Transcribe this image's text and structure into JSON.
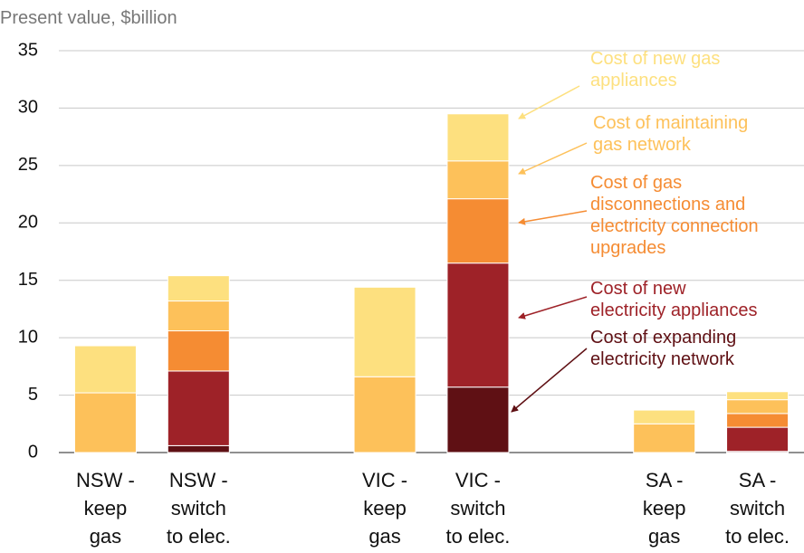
{
  "chart_data": {
    "type": "stacked_bar",
    "subtitle": "Present value, $billion",
    "categories": [
      "NSW -\nkeep\ngas",
      "NSW -\nswitch\nto elec.",
      null,
      "VIC -\nkeep\ngas",
      "VIC -\nswitch\nto elec.",
      null,
      "SA -\nkeep\ngas",
      "SA -\nswitch\nto elec."
    ],
    "series": [
      {
        "name": "Cost of expanding\nelectricity network",
        "color": "#5f1014",
        "values": [
          0,
          0.6,
          null,
          0,
          5.7,
          null,
          0,
          0.1
        ]
      },
      {
        "name": "Cost of new\nelectricity appliances",
        "color": "#9e2228",
        "values": [
          0,
          6.5,
          null,
          0,
          10.8,
          null,
          0,
          2.1
        ]
      },
      {
        "name": "Cost of gas\ndisconnections and\nelectricity connection\nupgrades",
        "color": "#f58c33",
        "values": [
          0,
          3.5,
          null,
          0,
          5.6,
          null,
          0,
          1.2
        ]
      },
      {
        "name": "Cost of maintaining\ngas network",
        "color": "#fdc15a",
        "values": [
          5.2,
          2.6,
          null,
          6.6,
          3.3,
          null,
          2.5,
          1.2
        ]
      },
      {
        "name": "Cost of new gas\nappliances",
        "color": "#fde07f",
        "values": [
          4.1,
          2.2,
          null,
          7.8,
          4.1,
          null,
          1.2,
          0.7
        ]
      }
    ],
    "ylim": [
      0,
      35
    ],
    "yticks": [
      0,
      5,
      10,
      15,
      20,
      25,
      30,
      35
    ],
    "grid": true
  }
}
